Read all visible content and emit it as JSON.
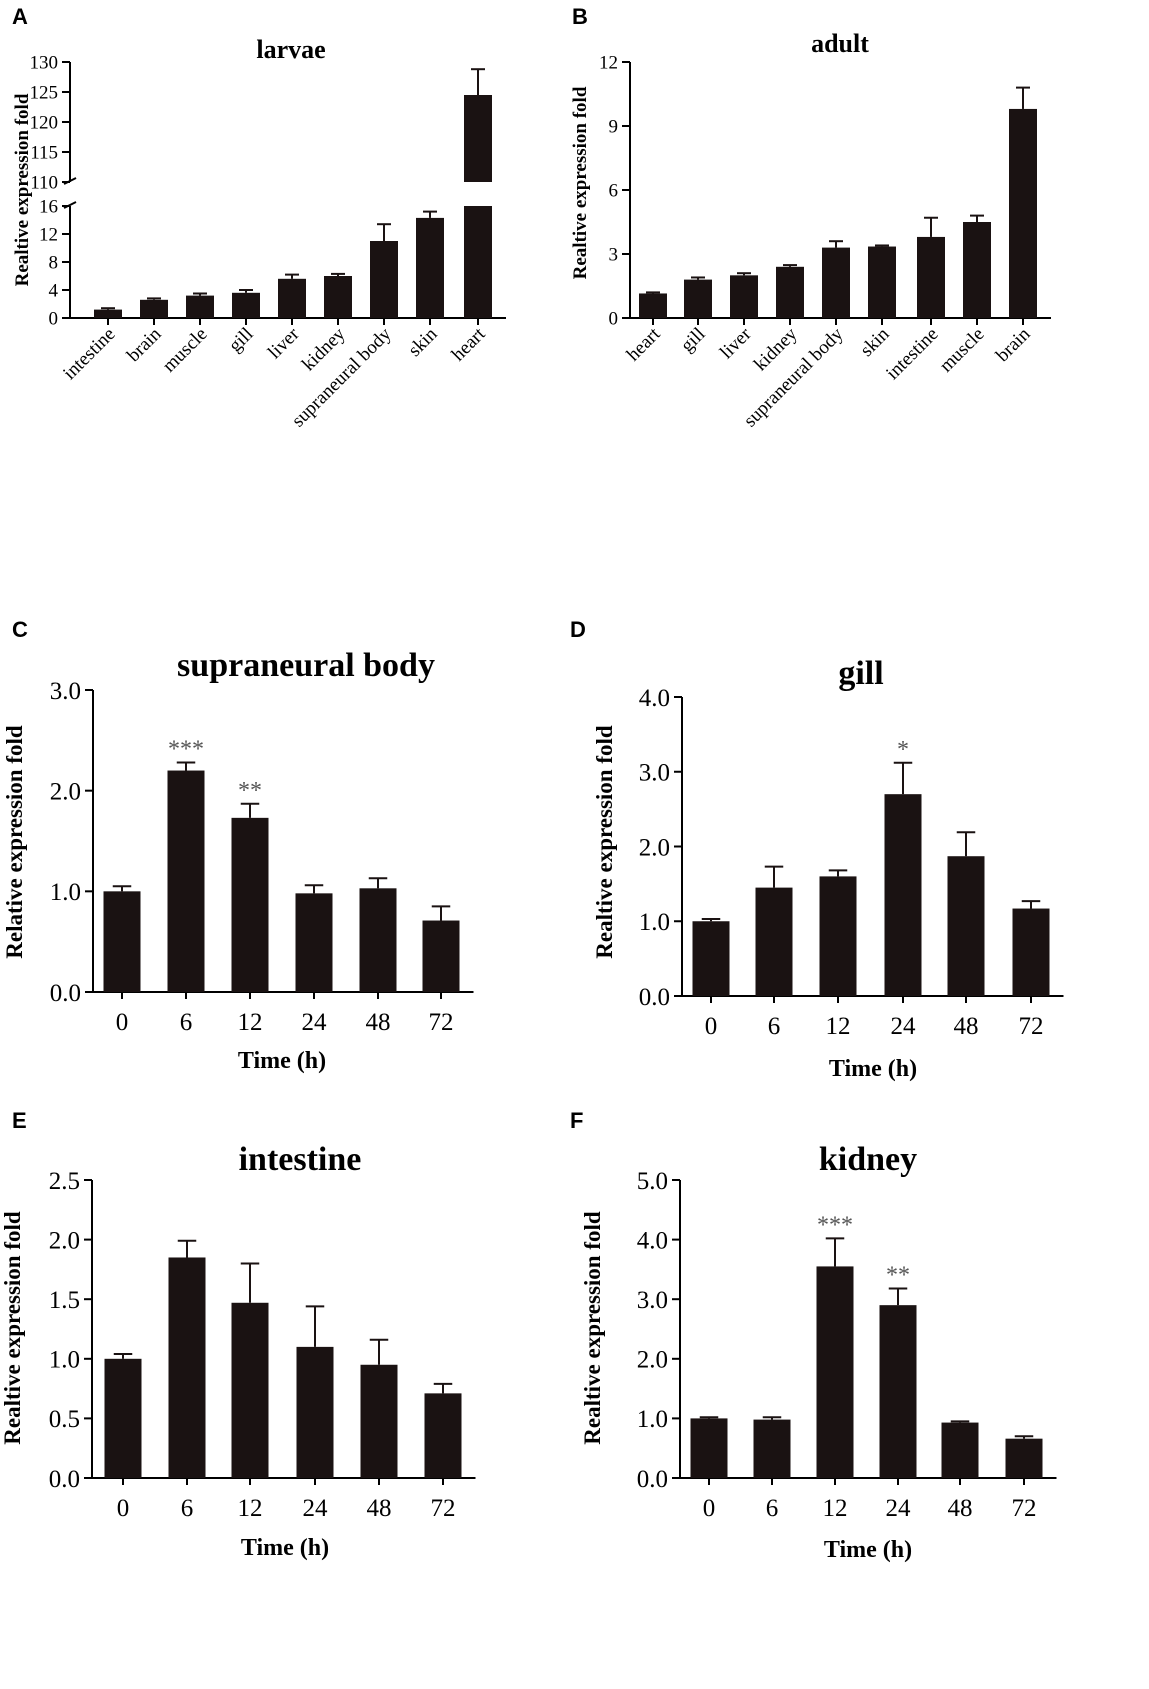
{
  "chart_data": [
    {
      "panel": "A",
      "type": "bar",
      "title": "larvae",
      "ylabel": "Realtive expression fold",
      "xlabel": "",
      "categories": [
        "intestine",
        "brain",
        "muscle",
        "gill",
        "liver",
        "kidney",
        "supraneural body",
        "skin",
        "heart"
      ],
      "values": [
        1.2,
        2.6,
        3.2,
        3.6,
        5.6,
        6.0,
        11.0,
        14.3,
        124.5
      ],
      "errors": [
        0.2,
        0.2,
        0.3,
        0.4,
        0.6,
        0.3,
        2.4,
        0.9,
        4.3
      ],
      "ylim_lower": [
        0,
        16
      ],
      "ylim_upper": [
        110,
        130
      ],
      "yticks_lower": [
        "0",
        "4",
        "8",
        "12",
        "16"
      ],
      "yticks_upper": [
        "110",
        "115",
        "120",
        "125",
        "130"
      ],
      "significance": [
        "",
        "",
        "",
        "",
        "",
        "",
        "",
        "",
        ""
      ]
    },
    {
      "panel": "B",
      "type": "bar",
      "title": "adult",
      "ylabel": "Realtive expression fold",
      "xlabel": "",
      "categories": [
        "heart",
        "gill",
        "liver",
        "kidney",
        "supraneural body",
        "skin",
        "intestine",
        "muscle",
        "brain"
      ],
      "values": [
        1.15,
        1.8,
        2.0,
        2.4,
        3.3,
        3.35,
        3.8,
        4.5,
        9.8
      ],
      "errors": [
        0.05,
        0.1,
        0.1,
        0.08,
        0.3,
        0.05,
        0.9,
        0.3,
        1.0
      ],
      "ylim": [
        0,
        12
      ],
      "yticks": [
        "0",
        "3",
        "6",
        "9",
        "12"
      ],
      "significance": [
        "",
        "",
        "",
        "",
        "",
        "",
        "",
        "",
        ""
      ]
    },
    {
      "panel": "C",
      "type": "bar",
      "title": "supraneural body",
      "ylabel": "Relative expression fold",
      "xlabel": "Time (h)",
      "categories": [
        "0",
        "6",
        "12",
        "24",
        "48",
        "72"
      ],
      "values": [
        1.0,
        2.2,
        1.73,
        0.98,
        1.03,
        0.71
      ],
      "errors": [
        0.05,
        0.08,
        0.14,
        0.08,
        0.1,
        0.14
      ],
      "ylim": [
        0,
        3.0
      ],
      "yticks": [
        "0.0",
        "1.0",
        "2.0",
        "3.0"
      ],
      "significance": [
        "",
        "***",
        "**",
        "",
        "",
        ""
      ]
    },
    {
      "panel": "D",
      "type": "bar",
      "title": "gill",
      "ylabel": "Realtive expression fold",
      "xlabel": "Time (h)",
      "categories": [
        "0",
        "6",
        "12",
        "24",
        "48",
        "72"
      ],
      "values": [
        1.0,
        1.45,
        1.6,
        2.7,
        1.87,
        1.17
      ],
      "errors": [
        0.03,
        0.28,
        0.08,
        0.42,
        0.32,
        0.1
      ],
      "ylim": [
        0,
        4.0
      ],
      "yticks": [
        "0.0",
        "1.0",
        "2.0",
        "3.0",
        "4.0"
      ],
      "significance": [
        "",
        "",
        "",
        "*",
        "",
        ""
      ]
    },
    {
      "panel": "E",
      "type": "bar",
      "title": "intestine",
      "ylabel": "Realtive expression fold",
      "xlabel": "Time (h)",
      "categories": [
        "0",
        "6",
        "12",
        "24",
        "48",
        "72"
      ],
      "values": [
        1.0,
        1.85,
        1.47,
        1.1,
        0.95,
        0.71
      ],
      "errors": [
        0.04,
        0.14,
        0.33,
        0.34,
        0.21,
        0.08
      ],
      "ylim": [
        0,
        2.5
      ],
      "yticks": [
        "0.0",
        "0.5",
        "1.0",
        "1.5",
        "2.0",
        "2.5"
      ],
      "significance": [
        "",
        "",
        "",
        "",
        "",
        ""
      ]
    },
    {
      "panel": "F",
      "type": "bar",
      "title": "kidney",
      "ylabel": "Realtive expression fold",
      "xlabel": "Time (h)",
      "categories": [
        "0",
        "6",
        "12",
        "24",
        "48",
        "72"
      ],
      "values": [
        1.0,
        0.98,
        3.55,
        2.9,
        0.93,
        0.66
      ],
      "errors": [
        0.02,
        0.04,
        0.47,
        0.28,
        0.02,
        0.04
      ],
      "ylim": [
        0,
        5.0
      ],
      "yticks": [
        "0.0",
        "1.0",
        "2.0",
        "3.0",
        "4.0",
        "5.0"
      ],
      "significance": [
        "",
        "",
        "***",
        "**",
        "",
        ""
      ]
    }
  ]
}
